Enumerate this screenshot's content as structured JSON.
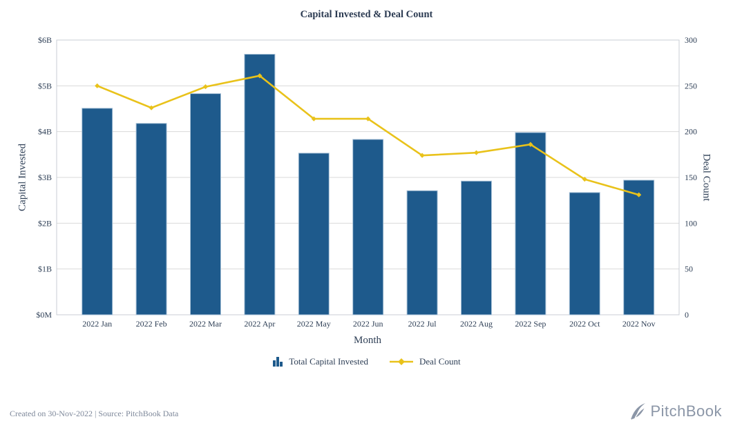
{
  "title": "Capital Invested & Deal Count",
  "axes": {
    "left": {
      "title": "Capital Invested",
      "tick_labels": [
        "$6B",
        "$5B",
        "$4B",
        "$3B",
        "$2B",
        "$1B",
        "$0M"
      ],
      "tick_values": [
        6,
        5,
        4,
        3,
        2,
        1,
        0
      ]
    },
    "right": {
      "title": "Deal Count",
      "tick_labels": [
        "300",
        "250",
        "200",
        "150",
        "100",
        "50",
        "0"
      ],
      "tick_values": [
        300,
        250,
        200,
        150,
        100,
        50,
        0
      ]
    },
    "x": {
      "title": "Month"
    }
  },
  "legend": {
    "bar_label": "Total Capital Invested",
    "line_label": "Deal Count"
  },
  "footer": {
    "caption": "Created on 30-Nov-2022 | Source: PitchBook Data",
    "brand": "PitchBook"
  },
  "colors": {
    "bar": "#1e5a8c",
    "bar_stroke": "#a9c2d8",
    "line": "#e9c21a",
    "text": "#2d3e55",
    "grid": "#d9d9d9",
    "plot_border": "#c9ced6",
    "footer_text": "#7e889a",
    "brand": "#8b96a7"
  },
  "chart_data": {
    "type": "bar+line combo (dual axis)",
    "categories": [
      "2022 Jan",
      "2022 Feb",
      "2022 Mar",
      "2022 Apr",
      "2022 May",
      "2022 Jun",
      "2022 Jul",
      "2022 Aug",
      "2022 Sep",
      "2022 Oct",
      "2022 Nov"
    ],
    "series": [
      {
        "name": "Total Capital Invested",
        "type": "bar",
        "axis": "left",
        "unit": "USD billions",
        "values": [
          4.51,
          4.18,
          4.83,
          5.69,
          3.53,
          3.83,
          2.71,
          2.92,
          3.98,
          2.67,
          2.94
        ]
      },
      {
        "name": "Deal Count",
        "type": "line",
        "axis": "right",
        "values": [
          250,
          226,
          249,
          261,
          214,
          214,
          174,
          177,
          186,
          148,
          131
        ]
      }
    ],
    "title": "Capital Invested & Deal Count",
    "xlabel": "Month",
    "ylabel_left": "Capital Invested",
    "ylabel_right": "Deal Count",
    "ylim_left": [
      0,
      6
    ],
    "ylim_right": [
      0,
      300
    ],
    "grid": "horizontal gridlines, boxed plot area",
    "legend_position": "bottom center"
  }
}
